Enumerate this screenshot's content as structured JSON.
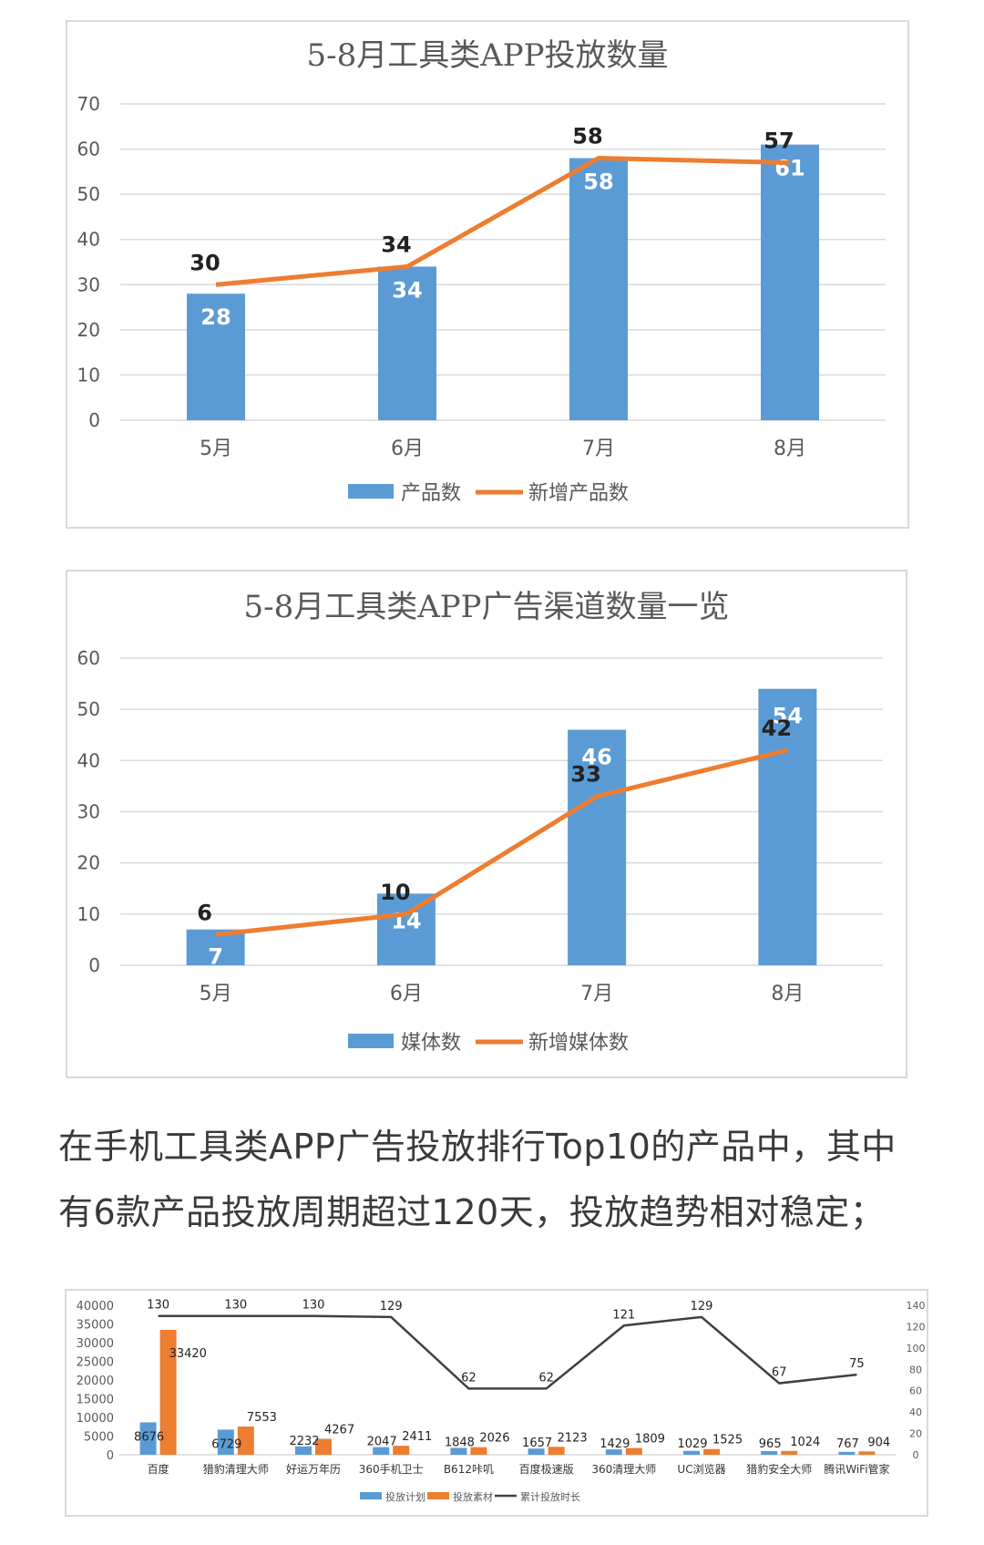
{
  "caption": {
    "line1": "在手机工具类APP广告投放排行Top10的产品中，其中",
    "line2": "有6款产品投放周期超过120天，投放趋势相对稳定；"
  },
  "colors": {
    "bar": "#5b9bd5",
    "line": "#ed7d31",
    "line_dark": "#404040",
    "grid": "#d9d9d9",
    "text": "#595959"
  },
  "chart_data": [
    {
      "type": "bar",
      "title": "5-8月工具类APP投放数量",
      "categories": [
        "5月",
        "6月",
        "7月",
        "8月"
      ],
      "ylim": [
        0,
        70
      ],
      "yticks": [
        0,
        10,
        20,
        30,
        40,
        50,
        60,
        70
      ],
      "grid": true,
      "legend_position": "bottom",
      "series": [
        {
          "name": "产品数",
          "kind": "bar",
          "values": [
            28,
            34,
            58,
            61
          ]
        },
        {
          "name": "新增产品数",
          "kind": "line",
          "values": [
            30,
            34,
            58,
            57
          ]
        }
      ]
    },
    {
      "type": "bar",
      "title": "5-8月工具类APP广告渠道数量一览",
      "categories": [
        "5月",
        "6月",
        "7月",
        "8月"
      ],
      "ylim": [
        0,
        60
      ],
      "yticks": [
        0,
        10,
        20,
        30,
        40,
        50,
        60
      ],
      "grid": true,
      "legend_position": "bottom",
      "series": [
        {
          "name": "媒体数",
          "kind": "bar",
          "values": [
            7,
            14,
            46,
            54
          ]
        },
        {
          "name": "新增媒体数",
          "kind": "line",
          "values": [
            6,
            10,
            33,
            42
          ]
        }
      ]
    },
    {
      "type": "bar",
      "title": "",
      "categories": [
        "百度",
        "猎豹清理大师",
        "好运万年历",
        "360手机卫士",
        "B612咔叽",
        "百度极速版",
        "360清理大师",
        "UC浏览器",
        "猎豹安全大师",
        "腾讯WiFi管家"
      ],
      "ylim": [
        0,
        40000
      ],
      "yticks": [
        0,
        5000,
        10000,
        15000,
        20000,
        25000,
        30000,
        35000,
        40000
      ],
      "y2lim": [
        0,
        140
      ],
      "y2ticks": [
        0,
        20,
        40,
        60,
        80,
        100,
        120,
        140
      ],
      "grid": false,
      "legend_position": "bottom",
      "series": [
        {
          "name": "投放计划",
          "kind": "bar",
          "values": [
            8676,
            6729,
            2232,
            2047,
            1848,
            1657,
            1429,
            1029,
            965,
            767
          ]
        },
        {
          "name": "投放素材",
          "kind": "bar",
          "values": [
            33420,
            7553,
            4267,
            2411,
            2026,
            2123,
            1809,
            1525,
            1024,
            904
          ]
        },
        {
          "name": "累计投放时长",
          "kind": "line",
          "axis": "right",
          "values": [
            130,
            130,
            130,
            129,
            62,
            62,
            121,
            129,
            67,
            75
          ]
        }
      ]
    }
  ]
}
